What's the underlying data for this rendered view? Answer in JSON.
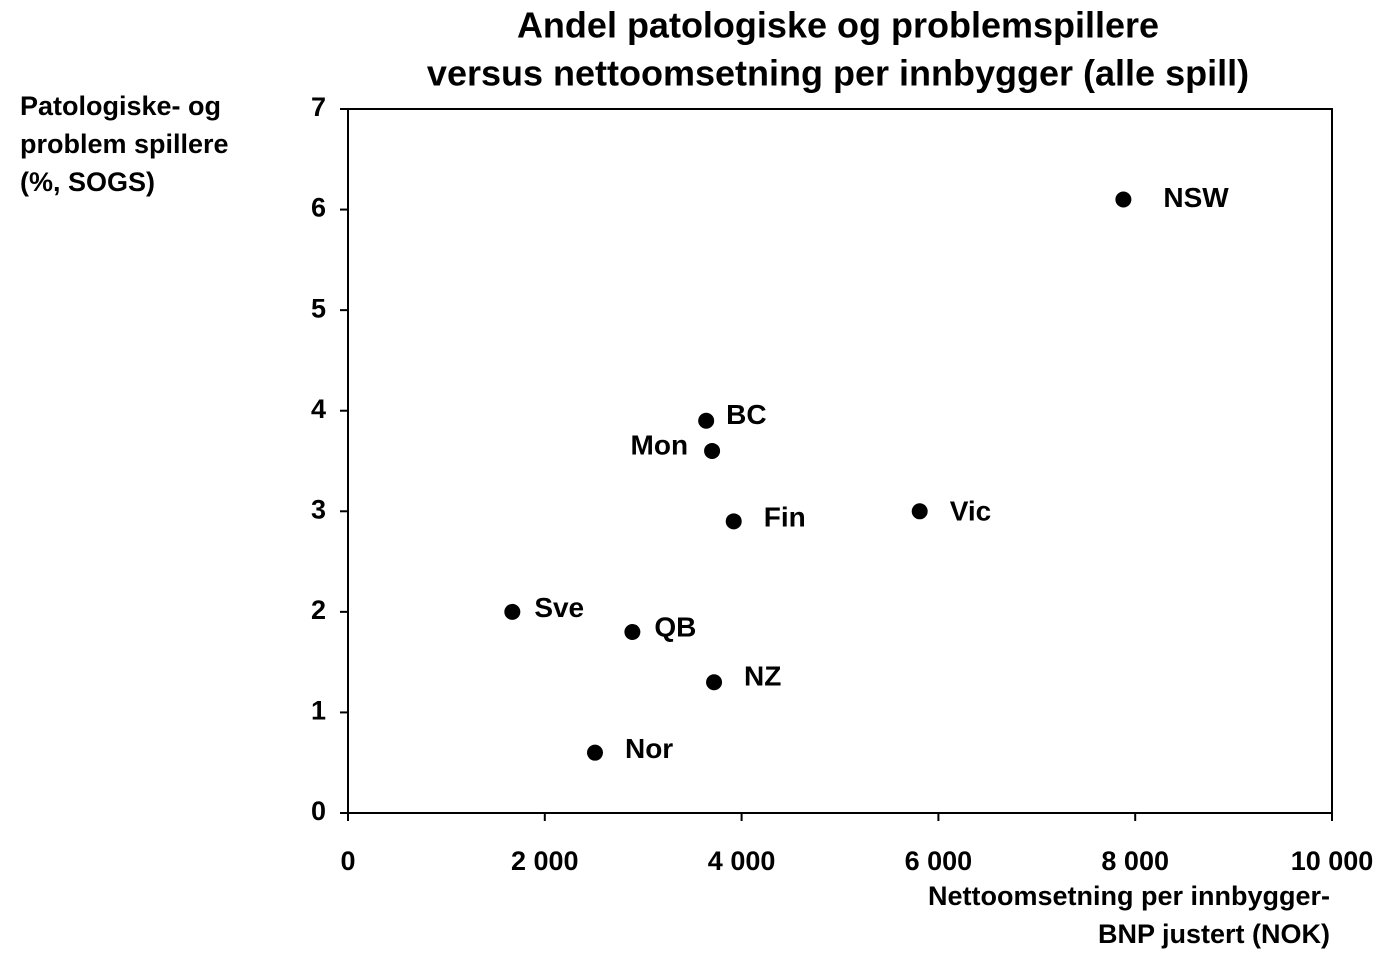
{
  "chart_data": {
    "type": "scatter",
    "title": [
      "Andel patologiske og problemspillere",
      "versus nettoomsetning per innbygger (alle spill)"
    ],
    "y_label": [
      "Patologiske- og",
      "problem spillere",
      "(%, SOGS)"
    ],
    "x_label": [
      "Nettoomsetning per innbygger-",
      "BNP justert (NOK)"
    ],
    "labels": [
      "NSW",
      "BC",
      "Mon",
      "Fin",
      "Vic",
      "Sve",
      "QB",
      "NZ",
      "Nor"
    ],
    "x": [
      7880,
      3640,
      3700,
      3920,
      5810,
      1670,
      2890,
      3720,
      2510
    ],
    "y": [
      6.1,
      3.9,
      3.6,
      2.9,
      3.0,
      2.0,
      1.8,
      1.3,
      0.6
    ],
    "color": "#000000",
    "xlim": [
      0,
      10000
    ],
    "xticks": [
      0,
      {
        "value": 2000,
        "label": "2 000"
      },
      {
        "value": 4000,
        "label": "4 000"
      },
      {
        "value": 6000,
        "label": "6 000"
      },
      {
        "value": 8000,
        "label": "8 000"
      },
      {
        "value": 10000,
        "label": "10 000"
      }
    ],
    "ylim": [
      0,
      7
    ],
    "yticks": [
      0,
      1,
      2,
      3,
      4,
      5,
      6,
      7
    ]
  }
}
